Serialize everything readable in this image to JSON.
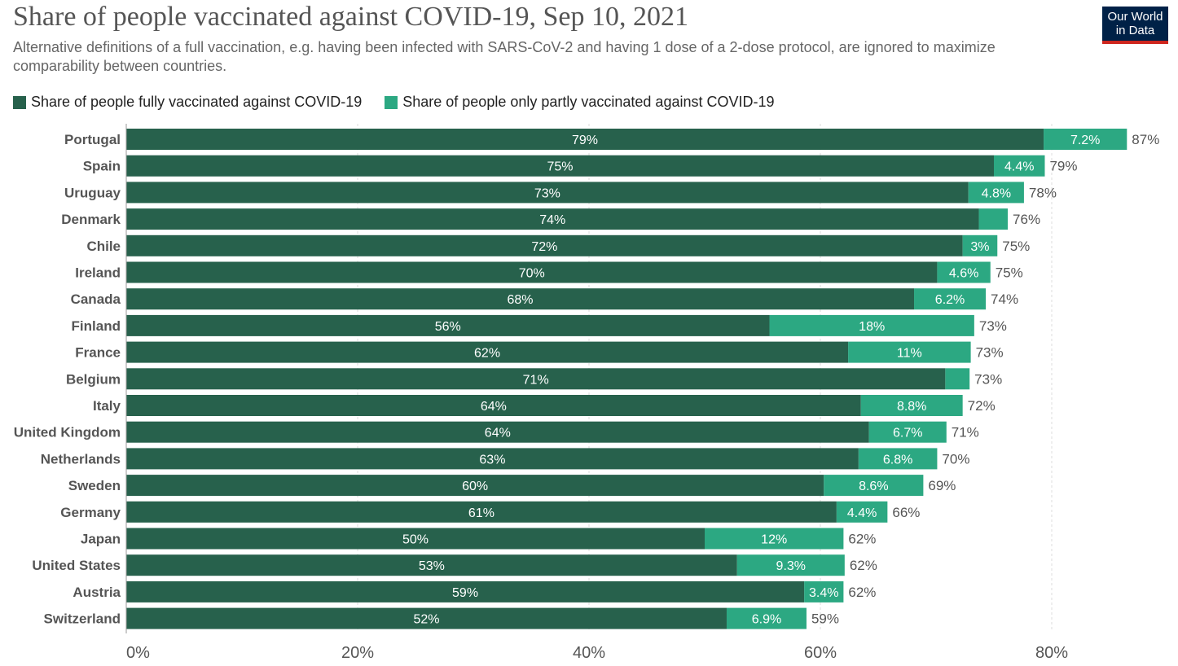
{
  "header": {
    "title": "Share of people vaccinated against COVID-19, Sep 10, 2021",
    "subtitle": "Alternative definitions of a full vaccination, e.g. having been infected with SARS-CoV-2 and having 1 dose of a 2-dose protocol, are ignored to maximize comparability between countries.",
    "logo_line1": "Our World",
    "logo_line2": "in Data"
  },
  "colors": {
    "full": "#27614c",
    "partial": "#2ca882",
    "grid": "#dddddd",
    "country_label": "#555555",
    "total_label": "#555555",
    "axis_label": "#555555"
  },
  "chart_data": {
    "type": "bar",
    "orientation": "horizontal",
    "stacked": true,
    "title": "Share of people vaccinated against COVID-19, Sep 10, 2021",
    "xlim": [
      0,
      87
    ],
    "x_ticks": [
      0,
      20,
      40,
      60,
      80
    ],
    "x_tick_labels": [
      "0%",
      "20%",
      "40%",
      "60%",
      "80%"
    ],
    "grid": "vertical dashed",
    "legend_position": "top-left",
    "categories": [
      "Portugal",
      "Spain",
      "Uruguay",
      "Denmark",
      "Chile",
      "Ireland",
      "Canada",
      "Finland",
      "France",
      "Belgium",
      "Italy",
      "United Kingdom",
      "Netherlands",
      "Sweden",
      "Germany",
      "Japan",
      "United States",
      "Austria",
      "Switzerland"
    ],
    "series": [
      {
        "name": "Share of people fully vaccinated against COVID-19",
        "values": [
          79.3,
          75.0,
          72.8,
          73.7,
          72.3,
          70.1,
          68.1,
          55.6,
          62.4,
          70.8,
          63.5,
          64.2,
          63.3,
          60.3,
          61.4,
          50.0,
          52.8,
          58.6,
          51.9
        ],
        "labels": [
          "79%",
          "75%",
          "73%",
          "74%",
          "72%",
          "70%",
          "68%",
          "56%",
          "62%",
          "71%",
          "64%",
          "64%",
          "63%",
          "60%",
          "61%",
          "50%",
          "53%",
          "59%",
          "52%"
        ]
      },
      {
        "name": "Share of people only partly vaccinated against COVID-19",
        "values": [
          7.2,
          4.4,
          4.8,
          2.5,
          3.0,
          4.6,
          6.2,
          17.7,
          10.6,
          2.1,
          8.8,
          6.7,
          6.8,
          8.6,
          4.4,
          12.0,
          9.3,
          3.4,
          6.9
        ],
        "labels": [
          "7.2%",
          "4.4%",
          "4.8%",
          "",
          "3%",
          "4.6%",
          "6.2%",
          "18%",
          "11%",
          "",
          "8.8%",
          "6.7%",
          "6.8%",
          "8.6%",
          "4.4%",
          "12%",
          "9.3%",
          "3.4%",
          "6.9%"
        ]
      }
    ],
    "totals": [
      "87%",
      "79%",
      "78%",
      "76%",
      "75%",
      "75%",
      "74%",
      "73%",
      "73%",
      "73%",
      "72%",
      "71%",
      "70%",
      "69%",
      "66%",
      "62%",
      "62%",
      "62%",
      "59%"
    ]
  }
}
